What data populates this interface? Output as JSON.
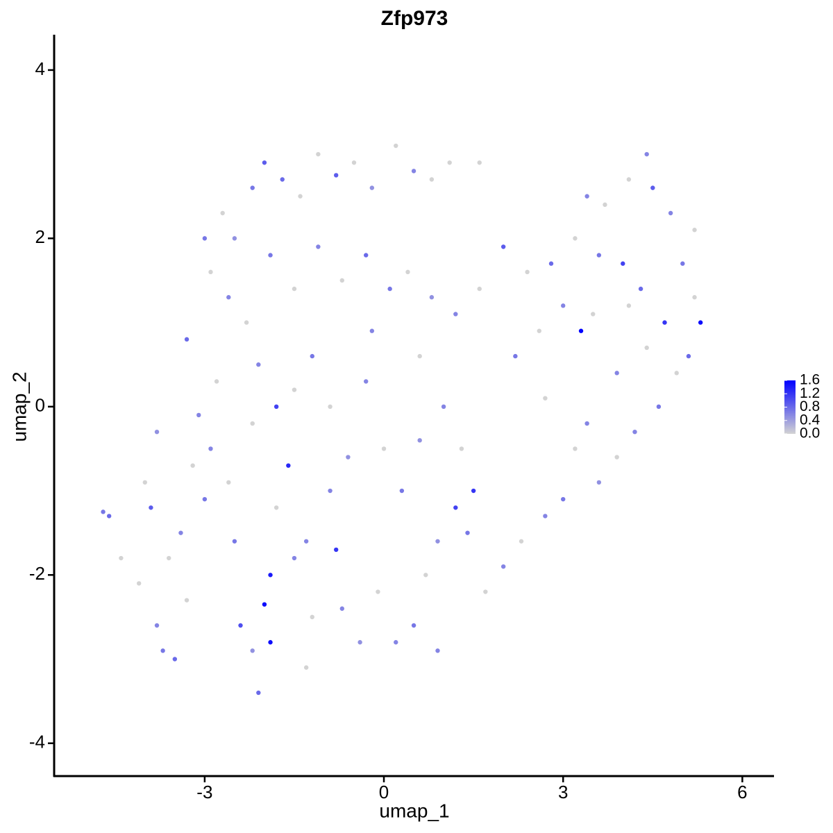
{
  "chart_data": {
    "type": "scatter",
    "title": "Zfp973",
    "x_label": "umap_1",
    "y_label": "umap_2",
    "xlim": [
      -5.52,
      6.53
    ],
    "ylim": [
      -4.39,
      4.42
    ],
    "xticks": [
      -3,
      0,
      3,
      6
    ],
    "yticks": [
      -4,
      -2,
      0,
      2,
      4
    ],
    "color_low": "#d3d3d3",
    "color_high": "#0000ff",
    "colorbar_lim": [
      0,
      1.6
    ],
    "colorbar_ticks": [
      {
        "value": 0,
        "label": "0.0"
      },
      0.4,
      0.8,
      1.2,
      1.6
    ],
    "x": [
      -4.7,
      -4.6,
      -4.4,
      -4.1,
      -3.9,
      -3.8,
      -3.7,
      -3.5,
      -3.3,
      -3.6,
      -3.4,
      -3.2,
      -3.0,
      -3.1,
      -3.3,
      -2.9,
      -2.8,
      -2.6,
      -2.5,
      -2.4,
      -2.2,
      -2.1,
      -1.9,
      -1.9,
      -2.0,
      -1.6,
      -1.8,
      -1.5,
      -1.2,
      -1.3,
      -0.8,
      -0.7,
      -0.4,
      -0.1,
      0.2,
      0.5,
      0.7,
      0.9,
      1.2,
      1.5,
      1.3,
      1.0,
      0.6,
      0.3,
      0.0,
      -0.3,
      -0.6,
      -0.9,
      -1.2,
      -1.5,
      -1.8,
      -2.1,
      -2.3,
      -2.6,
      -2.9,
      -3.0,
      -2.7,
      -2.2,
      -2.0,
      -1.7,
      -1.4,
      -1.1,
      -0.8,
      -0.5,
      -0.2,
      0.2,
      0.5,
      0.8,
      1.1,
      1.6,
      -1.9,
      -1.5,
      -1.1,
      -0.7,
      -0.3,
      0.1,
      0.4,
      0.8,
      1.2,
      1.6,
      2.0,
      2.4,
      2.8,
      3.2,
      3.3,
      3.0,
      2.6,
      2.2,
      2.7,
      3.4,
      3.2,
      3.0,
      2.7,
      2.3,
      2.0,
      1.7,
      1.4,
      3.6,
      3.9,
      4.2,
      4.6,
      4.9,
      5.1,
      5.3,
      5.2,
      5.0,
      5.2,
      4.8,
      4.5,
      4.4,
      4.1,
      3.7,
      3.4,
      3.6,
      4.0,
      4.3,
      4.7,
      4.4,
      3.9,
      3.5,
      4.1,
      -3.8,
      -4.0,
      -2.2,
      -0.9,
      -0.2,
      0.6,
      -2.5,
      -1.3,
      0.9
    ],
    "y": [
      -1.25,
      -1.3,
      -1.8,
      -2.1,
      -1.2,
      -2.6,
      -2.9,
      -3.0,
      -2.3,
      -1.8,
      -1.5,
      -0.7,
      -1.1,
      -0.1,
      0.8,
      -0.5,
      0.3,
      -0.9,
      -1.6,
      -2.6,
      -2.9,
      -3.4,
      -2.8,
      -2.0,
      -2.35,
      -0.7,
      -1.2,
      -1.8,
      -2.5,
      -3.1,
      -1.7,
      -2.4,
      -2.8,
      -2.2,
      -2.8,
      -2.6,
      -2.0,
      -1.6,
      -1.2,
      -1.0,
      -0.5,
      0.0,
      -0.4,
      -1.0,
      -0.5,
      0.3,
      -0.6,
      0.0,
      0.6,
      0.2,
      0.0,
      0.5,
      1.0,
      1.3,
      1.6,
      2.0,
      2.3,
      2.6,
      2.9,
      2.7,
      2.5,
      3.0,
      2.75,
      2.9,
      2.6,
      3.1,
      2.8,
      2.7,
      2.9,
      2.9,
      1.8,
      1.4,
      1.9,
      1.5,
      1.8,
      1.4,
      1.6,
      1.3,
      1.1,
      1.4,
      1.9,
      1.6,
      1.7,
      2.0,
      0.9,
      1.2,
      0.9,
      0.6,
      0.1,
      -0.2,
      -0.5,
      -1.1,
      -1.3,
      -1.6,
      -1.9,
      -2.2,
      -1.5,
      -0.9,
      -0.6,
      -0.3,
      0.0,
      0.4,
      0.6,
      1.0,
      1.3,
      1.7,
      2.1,
      2.3,
      2.6,
      3.0,
      2.7,
      2.4,
      2.5,
      1.8,
      1.7,
      1.4,
      1.0,
      0.7,
      0.4,
      1.1,
      1.2,
      -0.3,
      -0.9,
      -0.2,
      -1.0,
      0.9,
      0.6,
      2.0,
      -1.6,
      -2.9
    ],
    "expression": [
      0.7,
      0.8,
      0,
      0,
      0.9,
      0.6,
      0.7,
      0.8,
      0,
      0,
      0.6,
      0,
      0.7,
      0.6,
      0.8,
      0.6,
      0,
      0,
      0.7,
      1.0,
      0.5,
      0.8,
      1.5,
      1.4,
      1.5,
      1.3,
      0,
      0.6,
      0,
      0,
      1.2,
      0.6,
      0.5,
      0,
      0.6,
      0.7,
      0,
      0.5,
      1.1,
      1.2,
      0,
      0.6,
      0.5,
      0.7,
      0,
      0.6,
      0.5,
      0,
      0.7,
      0,
      1.1,
      0.6,
      0,
      0.6,
      0,
      0.7,
      0,
      0.7,
      0.9,
      0.8,
      0,
      0,
      0.9,
      0,
      0.5,
      0,
      0.6,
      0,
      0,
      0,
      0.7,
      0,
      0.6,
      0,
      0.8,
      0.7,
      0,
      0.5,
      0.6,
      0,
      0.9,
      0,
      0.8,
      0,
      1.6,
      0.6,
      0,
      0.7,
      0,
      0.6,
      0,
      0.7,
      0.6,
      0,
      0.6,
      0,
      0.7,
      0.5,
      0,
      0.6,
      0.7,
      0,
      0.8,
      1.5,
      0,
      0.7,
      0,
      0.6,
      0.9,
      0.6,
      0,
      0,
      0.6,
      0.7,
      1.1,
      0.8,
      1.2,
      0,
      0.6,
      0,
      0,
      0.5,
      0,
      0,
      0.6,
      0.6,
      0,
      0.5,
      0.6,
      0.6
    ]
  }
}
